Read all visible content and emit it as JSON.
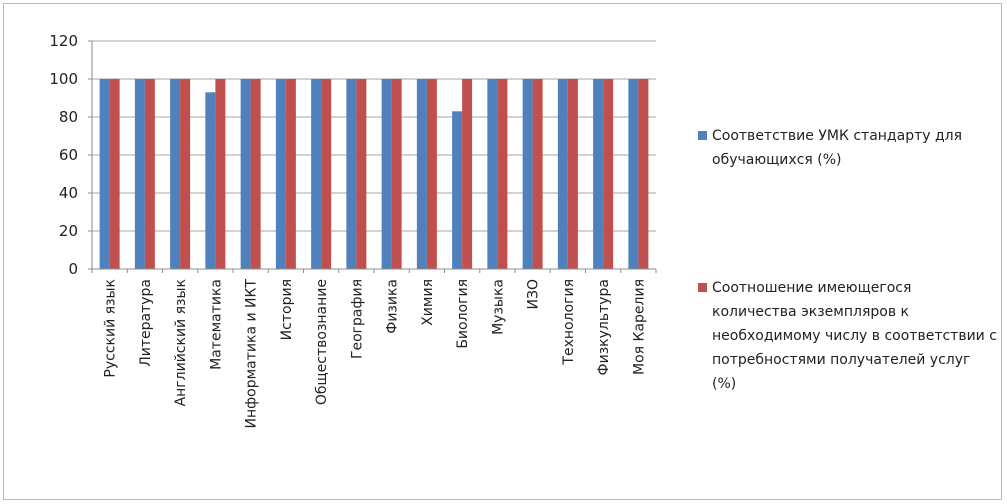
{
  "chart_data": {
    "type": "bar",
    "title": "",
    "xlabel": "",
    "ylabel": "",
    "ylim": [
      0,
      120
    ],
    "yticks": [
      0,
      20,
      40,
      60,
      80,
      100,
      120
    ],
    "grid": true,
    "legend_position": "right",
    "categories": [
      "Русский язык",
      "Литература",
      "Английский язык",
      "Математика",
      "Информатика и ИКТ",
      "История",
      "Обществознание",
      "География",
      "Физика",
      "Химия",
      "Биология",
      "Музыка",
      "ИЗО",
      "Технология",
      "Физкультура",
      "Моя Карелия"
    ],
    "series": [
      {
        "name": "Соответствие УМК стандарту для обучающихся (%)",
        "color": "#4f81bd",
        "values": [
          100,
          100,
          100,
          93,
          100,
          100,
          100,
          100,
          100,
          100,
          83,
          100,
          100,
          100,
          100,
          100
        ]
      },
      {
        "name": "Соотношение имеющегося количества экземпляров к необходимому числу в соответствии с потребностями получателей услуг (%)",
        "color": "#c0504d",
        "values": [
          100,
          100,
          100,
          100,
          100,
          100,
          100,
          100,
          100,
          100,
          100,
          100,
          100,
          100,
          100,
          100
        ]
      }
    ]
  }
}
